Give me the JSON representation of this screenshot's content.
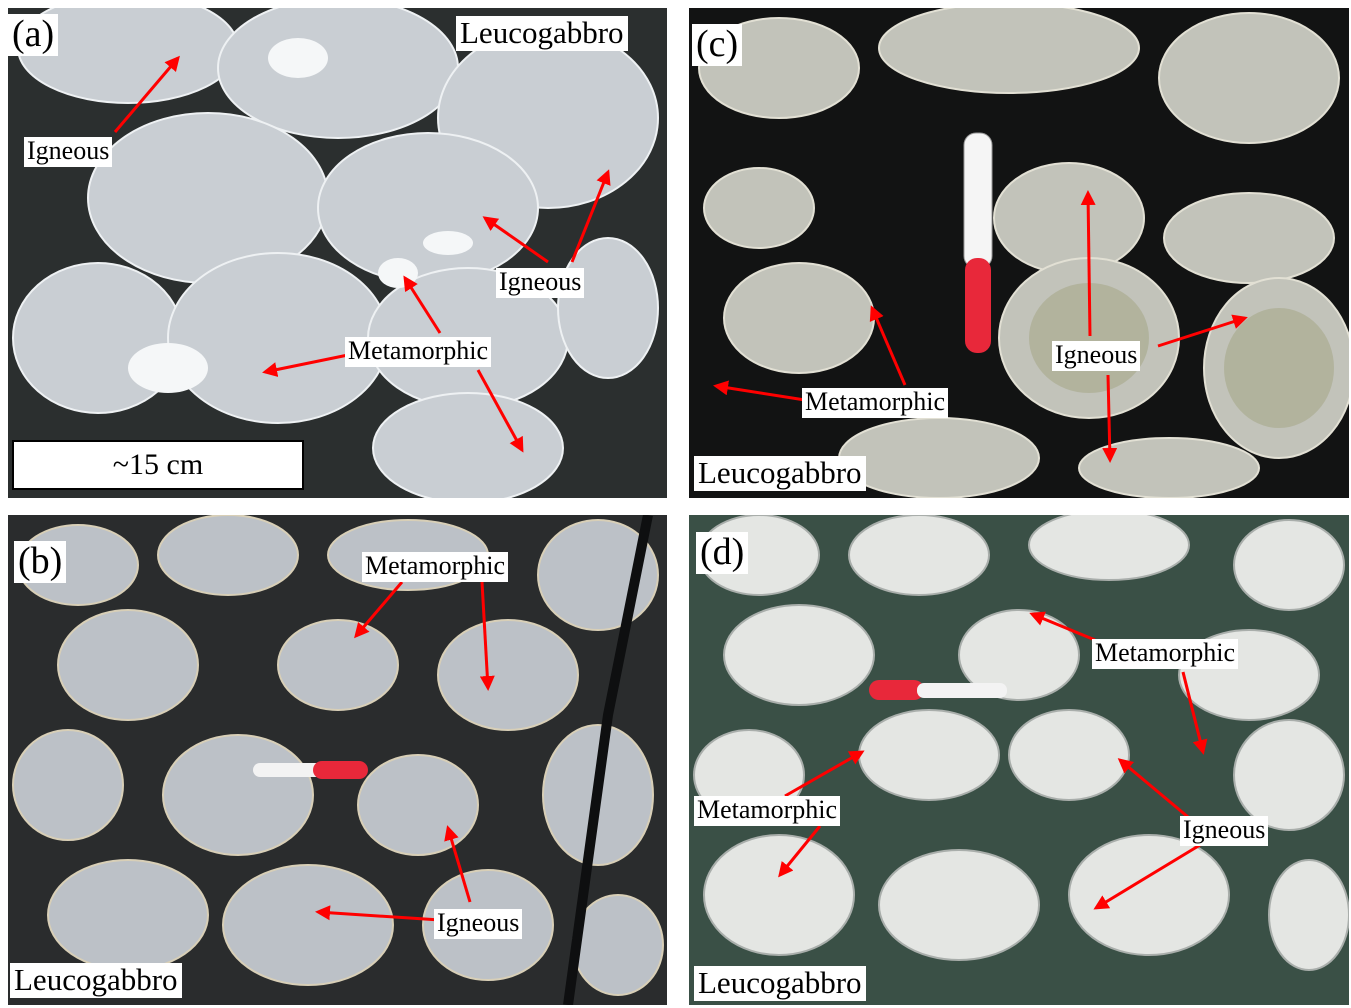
{
  "panels": {
    "a": {
      "letter": "(a)",
      "rock": "Leucogabbro",
      "scale_bar": "~15 cm",
      "labels": {
        "igneous_1": "Igneous",
        "igneous_2": "Igneous",
        "metamorphic": "Metamorphic"
      }
    },
    "b": {
      "letter": "(b)",
      "rock": "Leucogabbro",
      "labels": {
        "metamorphic": "Metamorphic",
        "igneous": "Igneous"
      }
    },
    "c": {
      "letter": "(c)",
      "rock": "Leucogabbro",
      "labels": {
        "igneous": "Igneous",
        "metamorphic": "Metamorphic"
      }
    },
    "d": {
      "letter": "(d)",
      "rock": "Leucogabbro",
      "labels": {
        "metamorphic_1": "Metamorphic",
        "metamorphic_2": "Metamorphic",
        "igneous": "Igneous"
      }
    }
  },
  "colors": {
    "arrow": "#ff0000",
    "groundmass_dark": "#1a1c1b",
    "clast_light": "#cfd3d6",
    "clast_tan": "#d9cdb0",
    "groundmass_green": "#3c5247"
  }
}
